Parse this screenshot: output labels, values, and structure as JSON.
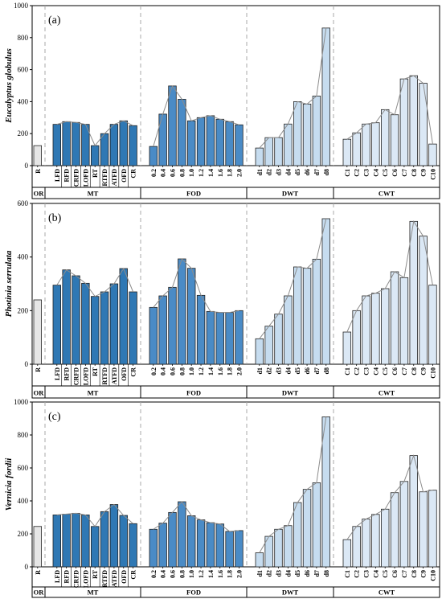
{
  "figure": {
    "group_labels": [
      "OR",
      "MT",
      "FOD",
      "DWT",
      "CWT"
    ],
    "group_colors": {
      "OR": "#e6e6e6",
      "MT": "#2f78b4",
      "FOD": "#4a8bc6",
      "DWT": "#c6dcef",
      "CWT": "#dbe8f5"
    },
    "line_color": "#8c8c8c"
  },
  "chart_data": [
    {
      "type": "bar",
      "panel_label": "(a)",
      "ylabel": "Eucalyptus globulus",
      "ylim": [
        0,
        1000
      ],
      "yticks": [
        0,
        200,
        400,
        600,
        800,
        1000
      ],
      "groups": [
        {
          "name": "OR",
          "categories": [
            "R"
          ],
          "values": [
            125
          ]
        },
        {
          "name": "MT",
          "categories": [
            "LFD",
            "RFD",
            "CRFD",
            "LOFD",
            "RT",
            "RTFD",
            "ATFD",
            "OFD",
            "CR"
          ],
          "values": [
            258,
            275,
            270,
            258,
            125,
            200,
            258,
            280,
            250
          ]
        },
        {
          "name": "FOD",
          "categories": [
            "0.2",
            "0.4",
            "0.6",
            "0.8",
            "1.0",
            "1.2",
            "1.4",
            "1.6",
            "1.8",
            "2.0"
          ],
          "values": [
            120,
            322,
            498,
            415,
            280,
            300,
            312,
            290,
            275,
            255
          ]
        },
        {
          "name": "DWT",
          "categories": [
            "d1",
            "d2",
            "d3",
            "d4",
            "d5",
            "d6",
            "d7",
            "d8"
          ],
          "values": [
            110,
            175,
            175,
            260,
            400,
            385,
            435,
            860
          ]
        },
        {
          "name": "CWT",
          "categories": [
            "C1",
            "C2",
            "C3",
            "C4",
            "C5",
            "C6",
            "C7",
            "C8",
            "C9",
            "C10"
          ],
          "values": [
            165,
            205,
            260,
            268,
            350,
            318,
            542,
            562,
            515,
            135
          ]
        }
      ]
    },
    {
      "type": "bar",
      "panel_label": "(b)",
      "ylabel": "Photinia serrulata",
      "ylim": [
        0,
        600
      ],
      "yticks": [
        0,
        200,
        400,
        600
      ],
      "groups": [
        {
          "name": "OR",
          "categories": [
            "R"
          ],
          "values": [
            240
          ]
        },
        {
          "name": "MT",
          "categories": [
            "LFD",
            "RFD",
            "CRFD",
            "LOFD",
            "RT",
            "RTFD",
            "ATFD",
            "OFD",
            "CR"
          ],
          "values": [
            295,
            352,
            330,
            302,
            253,
            270,
            300,
            357,
            270
          ]
        },
        {
          "name": "FOD",
          "categories": [
            "0.2",
            "0.4",
            "0.6",
            "0.8",
            "1.0",
            "1.2",
            "1.4",
            "1.6",
            "1.8",
            "2.0"
          ],
          "values": [
            212,
            255,
            287,
            393,
            358,
            257,
            197,
            193,
            193,
            200
          ]
        },
        {
          "name": "DWT",
          "categories": [
            "d1",
            "d2",
            "d3",
            "d4",
            "d5",
            "d6",
            "d7",
            "d8"
          ],
          "values": [
            95,
            142,
            187,
            255,
            363,
            358,
            392,
            543
          ]
        },
        {
          "name": "CWT",
          "categories": [
            "C1",
            "C2",
            "C3",
            "C4",
            "C5",
            "C6",
            "C7",
            "C8",
            "C9",
            "C10"
          ],
          "values": [
            120,
            200,
            255,
            265,
            282,
            345,
            323,
            533,
            478,
            295
          ]
        }
      ]
    },
    {
      "type": "bar",
      "panel_label": "(c)",
      "ylabel": "Vernicia fordii",
      "ylim": [
        0,
        1000
      ],
      "yticks": [
        0,
        200,
        400,
        600,
        800,
        1000
      ],
      "groups": [
        {
          "name": "OR",
          "categories": [
            "R"
          ],
          "values": [
            245
          ]
        },
        {
          "name": "MT",
          "categories": [
            "LFD",
            "RFD",
            "CRFD",
            "LOFD",
            "RT",
            "RTFD",
            "ATFD",
            "OFD",
            "CR"
          ],
          "values": [
            315,
            320,
            325,
            315,
            245,
            335,
            378,
            312,
            262
          ]
        },
        {
          "name": "FOD",
          "categories": [
            "0.2",
            "0.4",
            "0.6",
            "0.8",
            "1.0",
            "1.2",
            "1.4",
            "1.6",
            "1.8",
            "2.0"
          ],
          "values": [
            228,
            265,
            330,
            395,
            310,
            285,
            268,
            260,
            215,
            220
          ]
        },
        {
          "name": "DWT",
          "categories": [
            "d1",
            "d2",
            "d3",
            "d4",
            "d5",
            "d6",
            "d7",
            "d8"
          ],
          "values": [
            85,
            185,
            228,
            250,
            390,
            470,
            510,
            910
          ]
        },
        {
          "name": "CWT",
          "categories": [
            "C1",
            "C2",
            "C3",
            "C4",
            "C5",
            "C6",
            "C7",
            "C8",
            "C9",
            "C10"
          ],
          "values": [
            165,
            245,
            290,
            318,
            350,
            450,
            518,
            675,
            455,
            465
          ]
        }
      ]
    }
  ]
}
